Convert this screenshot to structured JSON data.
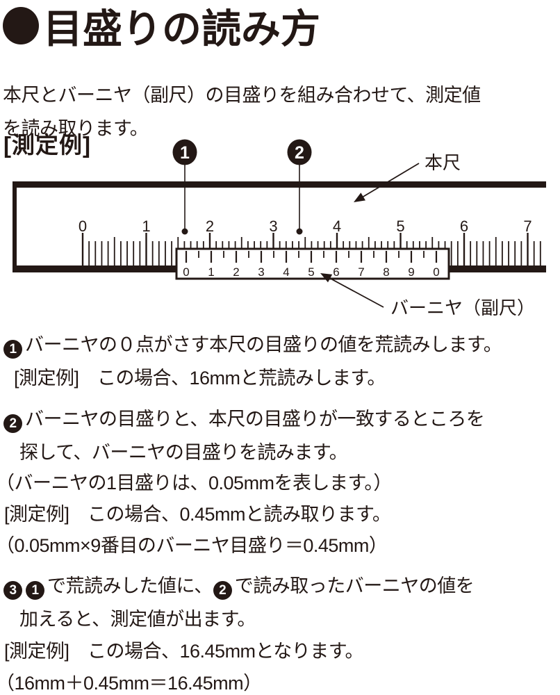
{
  "title": {
    "bullet_icon": "●",
    "text": "目盛りの読み方"
  },
  "intro_lines": [
    "本尺とバーニヤ（副尺）の目盛りを組み合わせて、測定値",
    "を読み取ります。"
  ],
  "diagram": {
    "example_label": "[測定例]",
    "main_scale_label": "本尺",
    "vernier_label": "バーニヤ（副尺）",
    "main_scale_numbers": [
      "0",
      "1",
      "2",
      "3",
      "4",
      "5",
      "6",
      "7"
    ],
    "vernier_numbers": [
      "0",
      "1",
      "2",
      "3",
      "4",
      "5",
      "6",
      "7",
      "8",
      "9",
      "0"
    ],
    "annotations": [
      {
        "n": "1"
      },
      {
        "n": "2"
      }
    ],
    "ink_color": "#231815",
    "indicated_main_reading_mm": "16",
    "indicated_vernier_reading_mm": "0.45"
  },
  "steps": [
    {
      "lines": [
        {
          "parts": [
            {
              "badge": "1"
            },
            {
              "text": "バーニヤの０点がさす本尺の目盛りの値を荒読みします。"
            }
          ]
        },
        {
          "parts": [
            {
              "text": "[測定例]　この場合、16mmと荒読みします。"
            }
          ]
        }
      ]
    },
    {
      "lines": [
        {
          "parts": [
            {
              "badge": "2"
            },
            {
              "text": "バーニヤの目盛りと、本尺の目盛りが一致するところを"
            }
          ]
        },
        {
          "parts": [
            {
              "text": "探して、バーニヤの目盛りを読みます。"
            }
          ]
        },
        {
          "parts": [
            {
              "text": "（バーニヤの1目盛りは、0.05mmを表します。）"
            }
          ]
        },
        {
          "parts": [
            {
              "text": "[測定例]　この場合、0.45mmと読み取ります。"
            }
          ]
        },
        {
          "parts": [
            {
              "text": "（0.05mm×9番目のバーニヤ目盛り＝0.45mm）"
            }
          ]
        }
      ]
    },
    {
      "lines": [
        {
          "parts": [
            {
              "badge": "3"
            },
            {
              "badge": "1"
            },
            {
              "text": "で荒読みした値に、"
            },
            {
              "badge": "2"
            },
            {
              "text": "で読み取ったバーニヤの値を"
            }
          ]
        },
        {
          "parts": [
            {
              "text": "加えると、測定値が出ます。"
            }
          ]
        },
        {
          "parts": [
            {
              "text": "[測定例]　この場合、16.45mmとなります。"
            }
          ]
        },
        {
          "parts": [
            {
              "text": "（16mm＋0.45mm＝16.45mm）"
            }
          ]
        }
      ]
    }
  ]
}
